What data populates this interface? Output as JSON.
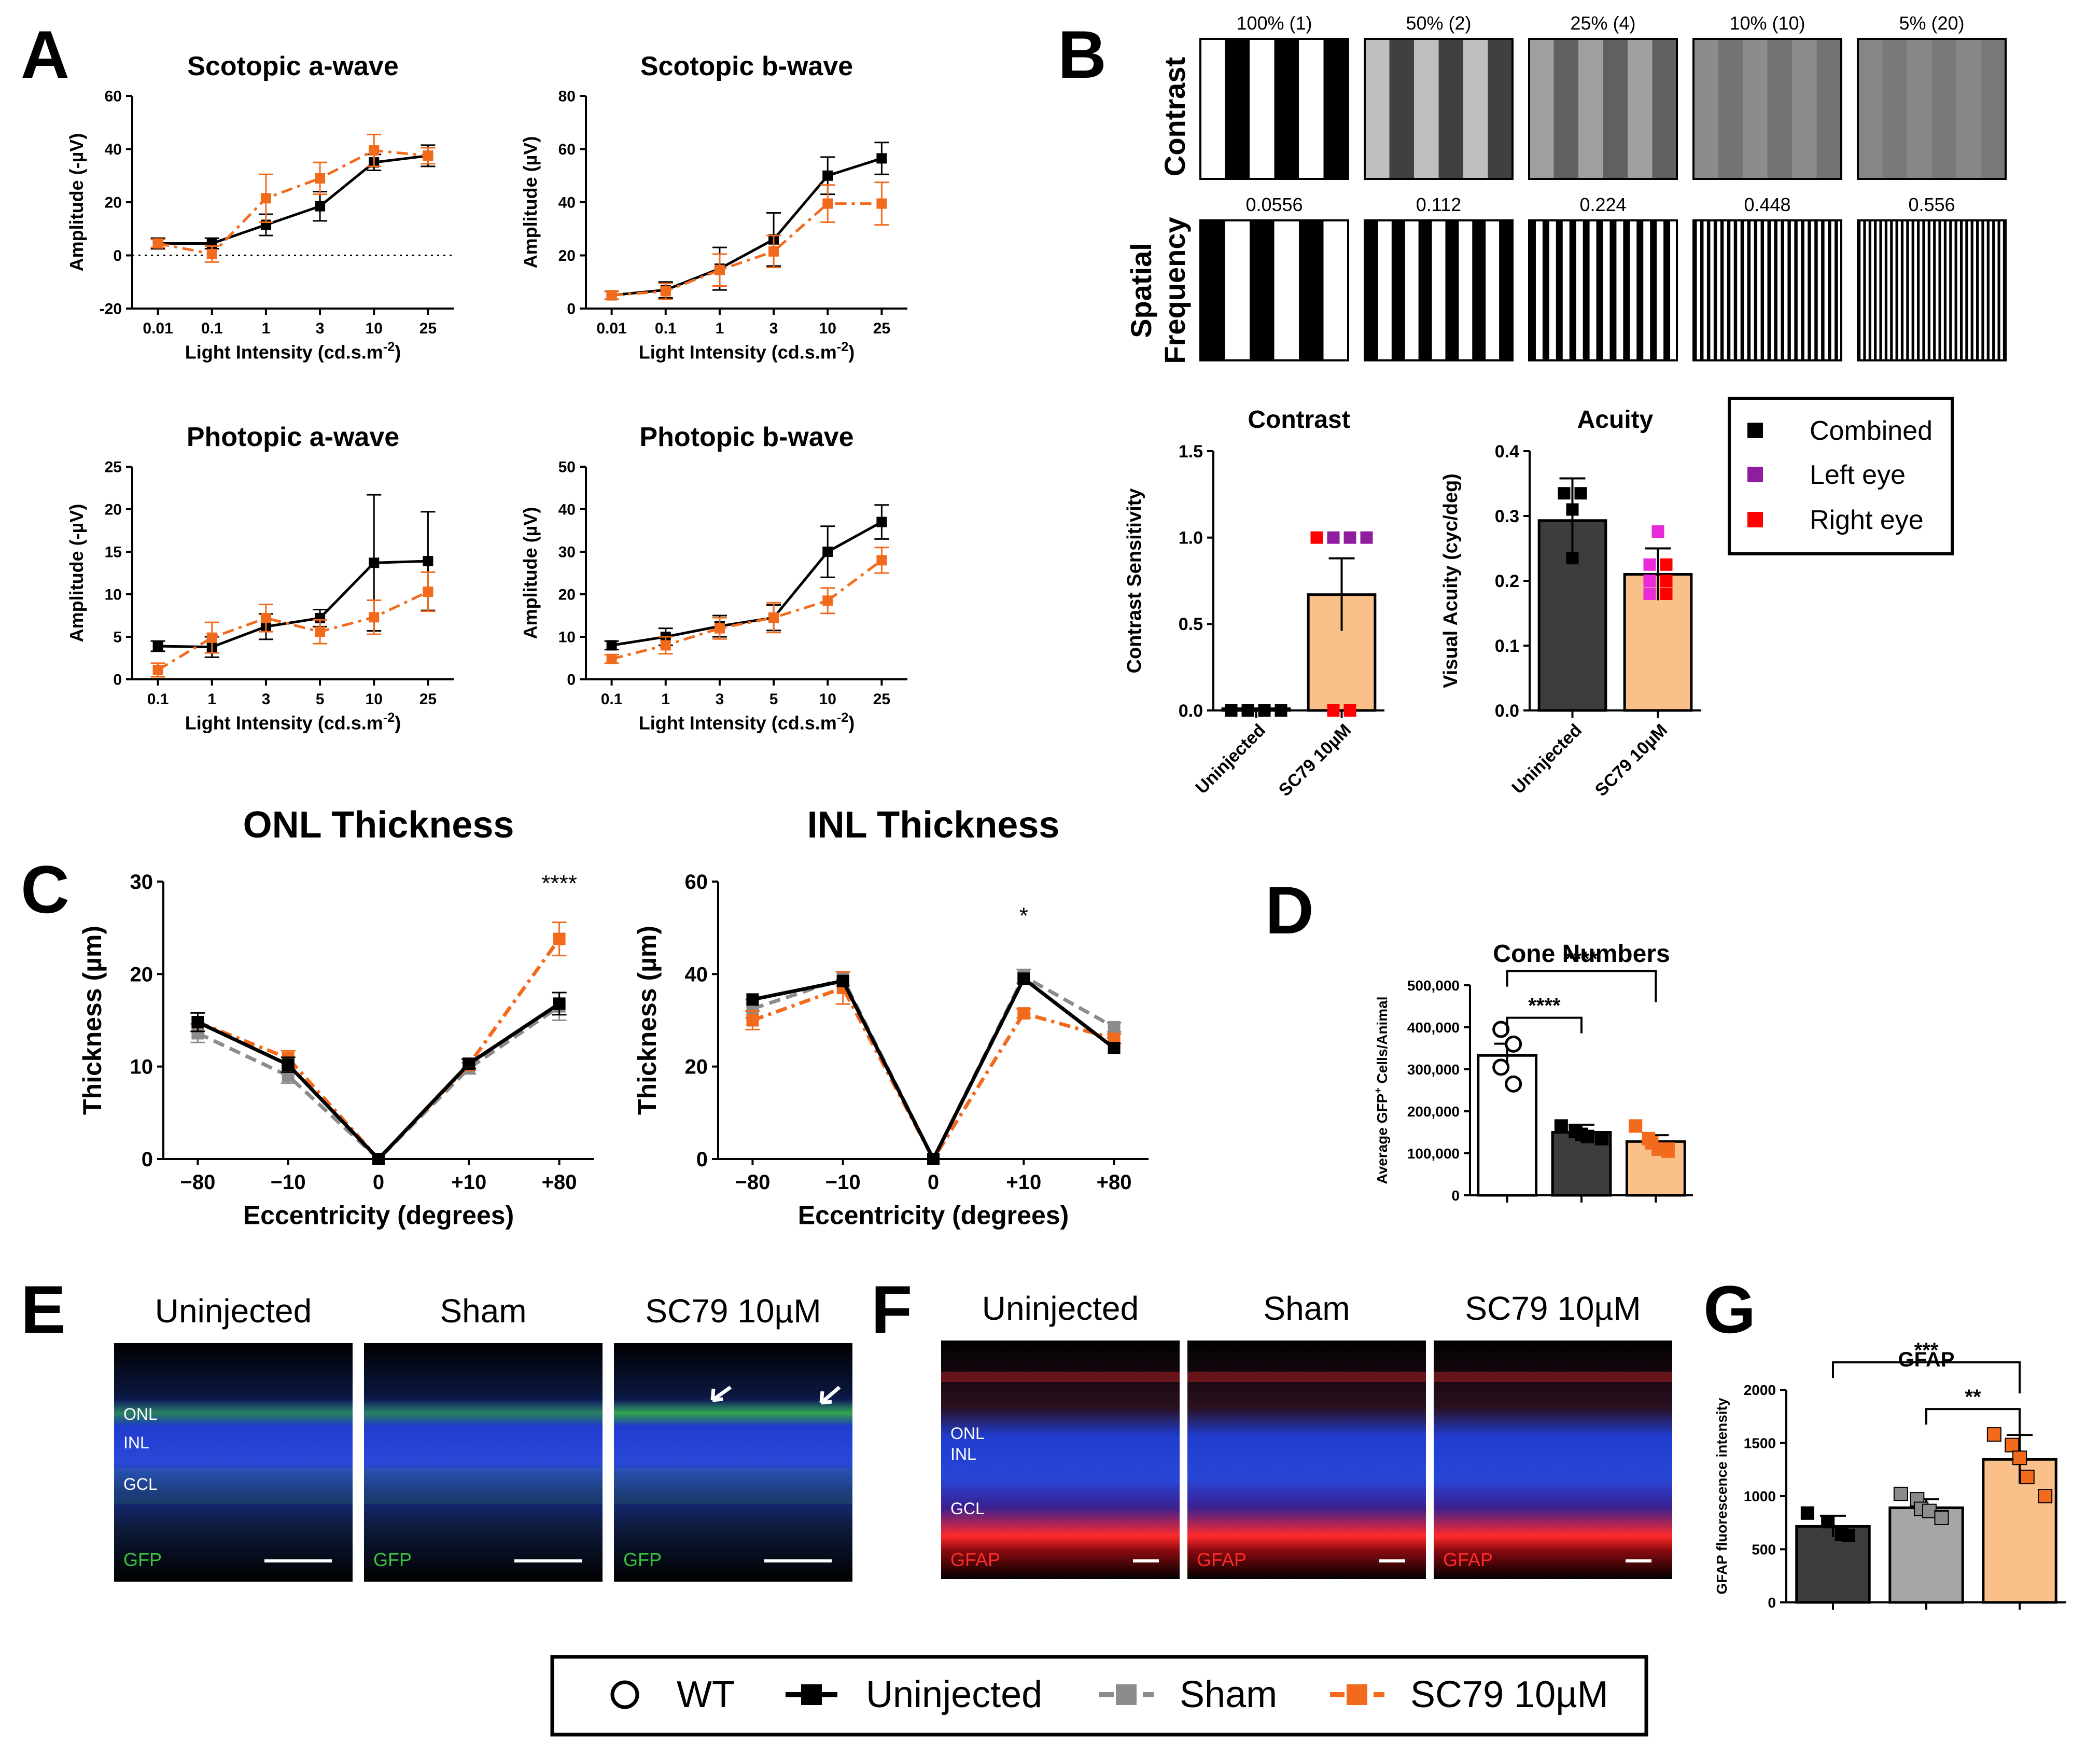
{
  "colors": {
    "uninjected": "#000000",
    "sham": "#8c8c8c",
    "sc79": "#f26b1d",
    "sc79_bar": "#f9c08a",
    "uninj_bar": "#3d3d3d",
    "sham_bar": "#a6a6a6",
    "wt_bar": "#ffffff",
    "left_eye": "#8e1e9e",
    "right_eye": "#ff0000",
    "magenta": "#e82ad8",
    "gfp": "#39c43c",
    "gfap": "#ff2a2a",
    "dapi": "#1f3ccf"
  },
  "panels": {
    "A": "A",
    "B": "B",
    "C": "C",
    "D": "D",
    "E": "E",
    "F": "F",
    "G": "G"
  },
  "B": {
    "row_contrast": "Contrast",
    "row_sf_1": "Spatial",
    "row_sf_2": "Frequency",
    "contrast_labels": [
      "100% (1)",
      "50% (2)",
      "25% (4)",
      "10% (10)",
      "5% (20)"
    ],
    "contrast_levels": [
      1,
      0.5,
      0.25,
      0.1,
      0.05
    ],
    "sf_labels": [
      "0.0556",
      "0.112",
      "0.224",
      "0.448",
      "0.556"
    ],
    "sf_cycles": [
      3,
      5.5,
      11,
      22,
      27.5
    ],
    "legend": [
      "Combined",
      "Left eye",
      "Right eye"
    ]
  },
  "images": {
    "E_titles": [
      "Uninjected",
      "Sham",
      "SC79 10µM"
    ],
    "F_titles": [
      "Uninjected",
      "Sham",
      "SC79 10µM"
    ],
    "E_stain": "GFP",
    "F_stain": "GFAP",
    "layers": [
      "ONL",
      "INL",
      "GCL"
    ]
  },
  "legend": {
    "wt": "WT",
    "uninjected": "Uninjected",
    "sham": "Sham",
    "sc79": "SC79 10µM"
  },
  "chart_data": [
    {
      "id": "A1",
      "type": "line",
      "title": "Scotopic a-wave",
      "xlabel": "Light Intensity (cd.s.m",
      "xlabel_sup": "-2",
      "xlabel_end": ")",
      "ylabel": "Amplitude (-µV)",
      "categories": [
        "0.01",
        "0.1",
        "1",
        "3",
        "10",
        "25"
      ],
      "ylim": [
        -20,
        60
      ],
      "yticks": [
        -20,
        0,
        20,
        40,
        60
      ],
      "zero_line": true,
      "series": [
        {
          "name": "Uninjected",
          "values": [
            4.5,
            4.5,
            11.5,
            18.5,
            35,
            37.5
          ],
          "err": [
            2,
            2,
            4,
            5.5,
            3,
            4
          ]
        },
        {
          "name": "SC79 10µM",
          "values": [
            4.5,
            0.5,
            21.5,
            29,
            39.5,
            37.5
          ],
          "err": [
            1.5,
            3,
            9,
            6,
            6,
            3
          ]
        }
      ]
    },
    {
      "id": "A2",
      "type": "line",
      "title": "Scotopic b-wave",
      "xlabel": "Light Intensity (cd.s.m",
      "xlabel_sup": "-2",
      "xlabel_end": ")",
      "ylabel": "Amplitude (µV)",
      "categories": [
        "0.01",
        "0.1",
        "1",
        "3",
        "10",
        "25"
      ],
      "ylim": [
        0,
        80
      ],
      "yticks": [
        0,
        20,
        40,
        60,
        80
      ],
      "series": [
        {
          "name": "Uninjected",
          "values": [
            5,
            7,
            15,
            26,
            50,
            56.5
          ],
          "err": [
            1.5,
            3,
            8,
            10,
            7,
            6
          ]
        },
        {
          "name": "SC79 10µM",
          "values": [
            5,
            6.5,
            14.5,
            21.5,
            39.5,
            39.5
          ],
          "err": [
            1.5,
            3,
            6,
            6,
            7,
            8
          ]
        }
      ]
    },
    {
      "id": "A3",
      "type": "line",
      "title": "Photopic a-wave",
      "xlabel": "Light Intensity (cd.s.m",
      "xlabel_sup": "-2",
      "xlabel_end": ")",
      "ylabel": "Amplitude (-µV)",
      "categories": [
        "0.1",
        "1",
        "3",
        "5",
        "10",
        "25"
      ],
      "ylim": [
        0,
        25
      ],
      "yticks": [
        0,
        5,
        10,
        15,
        20,
        25
      ],
      "series": [
        {
          "name": "Uninjected",
          "values": [
            3.9,
            3.8,
            6.2,
            7.2,
            13.7,
            13.9
          ],
          "err": [
            0.6,
            1.2,
            1.5,
            1,
            8,
            5.8
          ]
        },
        {
          "name": "SC79 10µM",
          "values": [
            1.1,
            4.9,
            7.2,
            5.6,
            7.3,
            10.3
          ],
          "err": [
            0.8,
            1.8,
            1.6,
            1.4,
            2,
            2.3
          ]
        }
      ]
    },
    {
      "id": "A4",
      "type": "line",
      "title": "Photopic b-wave",
      "xlabel": "Light Intensity (cd.s.m",
      "xlabel_sup": "-2",
      "xlabel_end": ")",
      "ylabel": "Amplitude (µV)",
      "categories": [
        "0.1",
        "1",
        "3",
        "5",
        "10",
        "25"
      ],
      "ylim": [
        0,
        50
      ],
      "yticks": [
        0,
        10,
        20,
        30,
        40,
        50
      ],
      "series": [
        {
          "name": "Uninjected",
          "values": [
            8,
            10,
            12.5,
            14.5,
            30,
            37
          ],
          "err": [
            1,
            2,
            2.5,
            3,
            6,
            4
          ]
        },
        {
          "name": "SC79 10µM",
          "values": [
            4.8,
            8,
            12,
            14.5,
            18.5,
            28
          ],
          "err": [
            1,
            2,
            2.5,
            3.5,
            3,
            3
          ]
        }
      ]
    },
    {
      "id": "Bc",
      "type": "bar",
      "title": "Contrast",
      "ylabel": "Contrast Sensitivity",
      "categories": [
        "Uninjected",
        "SC79 10µM"
      ],
      "ylim": [
        0,
        1.5
      ],
      "yticks": [
        "0.0",
        "0.5",
        "1.0",
        "1.5"
      ],
      "values": [
        0.01,
        0.67
      ],
      "err": [
        0,
        0.21
      ],
      "points": [
        {
          "cat": 0,
          "v": 0,
          "c": "combined"
        },
        {
          "cat": 0,
          "v": 0,
          "c": "combined"
        },
        {
          "cat": 0,
          "v": 0,
          "c": "combined"
        },
        {
          "cat": 0,
          "v": 0,
          "c": "combined"
        },
        {
          "cat": 1,
          "v": 1.0,
          "c": "right"
        },
        {
          "cat": 1,
          "v": 1.0,
          "c": "left"
        },
        {
          "cat": 1,
          "v": 1.0,
          "c": "left"
        },
        {
          "cat": 1,
          "v": 1.0,
          "c": "left"
        },
        {
          "cat": 1,
          "v": 0,
          "c": "right"
        },
        {
          "cat": 1,
          "v": 0,
          "c": "right"
        }
      ]
    },
    {
      "id": "Ba",
      "type": "bar",
      "title": "Acuity",
      "ylabel": "Visual Acuity (cyc/deg)",
      "categories": [
        "Uninjected",
        "SC79 10µM"
      ],
      "ylim": [
        0,
        0.4
      ],
      "yticks": [
        "0.0",
        "0.1",
        "0.2",
        "0.3",
        "0.4"
      ],
      "values": [
        0.293,
        0.21
      ],
      "err": [
        0.065,
        0.04
      ],
      "points": [
        {
          "cat": 0,
          "v": 0.335,
          "c": "combined"
        },
        {
          "cat": 0,
          "v": 0.31,
          "c": "combined"
        },
        {
          "cat": 0,
          "v": 0.335,
          "c": "combined"
        },
        {
          "cat": 0,
          "v": 0.235,
          "c": "combined"
        },
        {
          "cat": 1,
          "v": 0.276,
          "c": "magenta"
        },
        {
          "cat": 1,
          "v": 0.225,
          "c": "magenta"
        },
        {
          "cat": 1,
          "v": 0.225,
          "c": "right"
        },
        {
          "cat": 1,
          "v": 0.2,
          "c": "magenta"
        },
        {
          "cat": 1,
          "v": 0.2,
          "c": "right"
        },
        {
          "cat": 1,
          "v": 0.18,
          "c": "magenta"
        },
        {
          "cat": 1,
          "v": 0.18,
          "c": "right"
        }
      ]
    },
    {
      "id": "C1",
      "type": "line",
      "title": "ONL Thickness",
      "xlabel": "Eccentricity (degrees)",
      "ylabel": "Thickness (µm)",
      "categories": [
        "−80",
        "−10",
        "0",
        "+10",
        "+80"
      ],
      "ylim": [
        0,
        30
      ],
      "yticks": [
        0,
        10,
        20,
        30
      ],
      "annotations": [
        {
          "cat": 4,
          "text": "****",
          "v": 29
        }
      ],
      "series": [
        {
          "name": "Sham",
          "values": [
            13.6,
            9,
            0,
            9.8,
            16.5
          ],
          "err": [
            1,
            0.8,
            0,
            0.6,
            1.5
          ]
        },
        {
          "name": "SC79 10µM",
          "values": [
            14.8,
            10.9,
            0,
            10.2,
            23.8
          ],
          "err": [
            1,
            0.8,
            0,
            0.6,
            1.8
          ]
        },
        {
          "name": "Uninjected",
          "values": [
            14.8,
            10.2,
            0,
            10.3,
            16.8
          ],
          "err": [
            1,
            0.8,
            0,
            0.5,
            1.2
          ]
        }
      ]
    },
    {
      "id": "C2",
      "type": "line",
      "title": "INL Thickness",
      "xlabel": "Eccentricity (degrees)",
      "ylabel": "Thickness (µm)",
      "categories": [
        "−80",
        "−10",
        "0",
        "+10",
        "+80"
      ],
      "ylim": [
        0,
        60
      ],
      "yticks": [
        0,
        20,
        40,
        60
      ],
      "annotations": [
        {
          "cat": 3,
          "text": "*",
          "v": 51
        }
      ],
      "series": [
        {
          "name": "Sham",
          "values": [
            32.5,
            39,
            0,
            39.5,
            28.5
          ],
          "err": [
            2,
            1.5,
            0,
            1.5,
            1
          ]
        },
        {
          "name": "SC79 10µM",
          "values": [
            30,
            37,
            0,
            31.5,
            26
          ],
          "err": [
            2,
            3.5,
            0,
            1,
            1
          ]
        },
        {
          "name": "Uninjected",
          "values": [
            34.5,
            38.5,
            0,
            39,
            24
          ]
        }
      ]
    },
    {
      "id": "D",
      "type": "bar",
      "title": "Cone Numbers",
      "ylabel": "Average GFP",
      "ylabel_sup": "+",
      "ylabel_end": " Cells/Animal",
      "categories": [
        "WT",
        "Uninjected",
        "SC79 10µM"
      ],
      "ylim": [
        0,
        500000
      ],
      "yticks": [
        "0",
        "100,000",
        "200,000",
        "300,000",
        "400,000",
        "500,000"
      ],
      "values": [
        333000,
        150000,
        128000
      ],
      "err": [
        28000,
        18000,
        15000
      ],
      "points": [
        [
          395000,
          360000,
          305000,
          265000
        ],
        [
          165000,
          152000,
          145000,
          140000,
          135000
        ],
        [
          165000,
          135000,
          125000,
          110000,
          110000,
          105000
        ]
      ],
      "sig": [
        {
          "from": 0,
          "to": 1,
          "text": "****"
        },
        {
          "from": 0,
          "to": 2,
          "text": "****"
        }
      ]
    },
    {
      "id": "G",
      "type": "bar",
      "title": "GFAP",
      "ylabel": "GFAP fluorescence intensity",
      "categories": [
        "Uninjected",
        "Sham",
        "SC79 10µM"
      ],
      "ylim": [
        0,
        2000
      ],
      "yticks": [
        "0",
        "500",
        "1000",
        "1500",
        "2000"
      ],
      "values": [
        715,
        890,
        1345
      ],
      "err": [
        100,
        80,
        230
      ],
      "points": [
        [
          840,
          760,
          640,
          630
        ],
        [
          1020,
          970,
          880,
          860,
          800,
          795
        ],
        [
          1580,
          1480,
          1360,
          1180,
          1000
        ]
      ],
      "sig": [
        {
          "from": 1,
          "to": 2,
          "text": "**"
        },
        {
          "from": 0,
          "to": 2,
          "text": "***"
        }
      ]
    }
  ]
}
